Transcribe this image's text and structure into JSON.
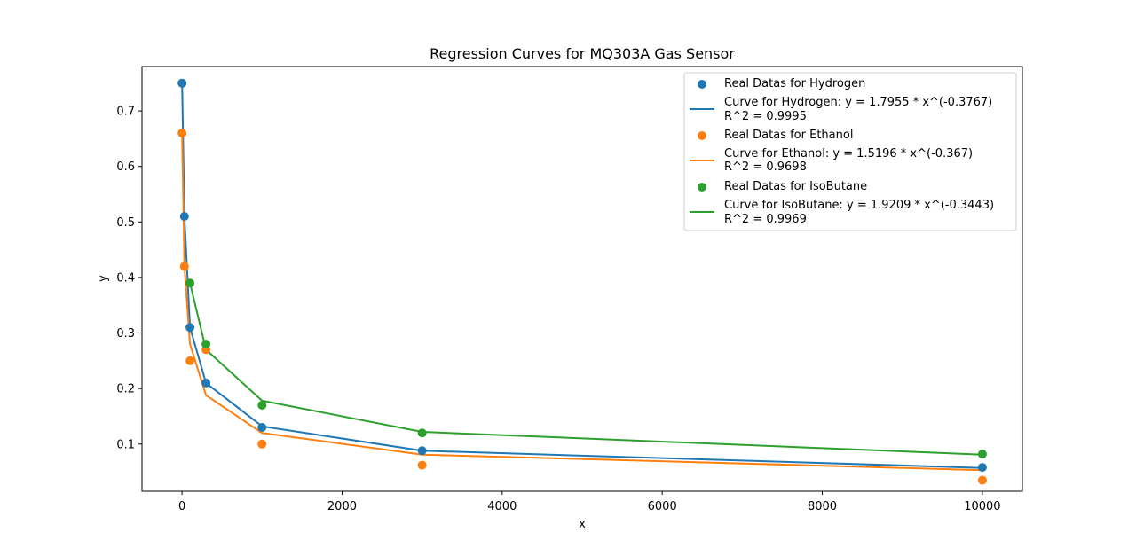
{
  "chart_data": {
    "type": "scatter",
    "title": "Regression Curves for MQ303A Gas Sensor",
    "xlabel": "x",
    "ylabel": "y",
    "xlim": [
      -500,
      10500
    ],
    "ylim": [
      0.015,
      0.78
    ],
    "x_ticks": [
      0,
      2000,
      4000,
      6000,
      8000,
      10000
    ],
    "y_ticks": [
      0.1,
      0.2,
      0.3,
      0.4,
      0.5,
      0.6,
      0.7
    ],
    "grid": false,
    "legend_position": "top-right",
    "x": [
      1,
      30,
      100,
      300,
      1000,
      3000,
      10000
    ],
    "series": [
      {
        "color": "#1f77b4",
        "points_label": "Real Datas for Hydrogen",
        "curve_label": "Curve for Hydrogen: y = 1.7955 * x^(-0.3767)",
        "r2_label": "R^2 = 0.9995",
        "points": [
          0.75,
          0.51,
          0.31,
          0.21,
          0.13,
          0.088,
          0.058
        ],
        "curve": [
          0.75,
          0.51,
          0.31,
          0.21,
          0.132,
          0.088,
          0.057
        ]
      },
      {
        "color": "#ff7f0e",
        "points_label": "Real Datas for Ethanol",
        "curve_label": "Curve for Ethanol: y = 1.5196 * x^(-0.367)",
        "r2_label": "R^2 = 0.9698",
        "points": [
          0.66,
          0.42,
          0.25,
          0.27,
          0.1,
          0.062,
          0.035
        ],
        "curve": [
          0.66,
          0.42,
          0.28,
          0.188,
          0.12,
          0.081,
          0.053
        ]
      },
      {
        "color": "#2ca02c",
        "points_label": "Real Datas for IsoButane",
        "curve_label": "Curve for IsoButane: y = 1.9209 * x^(-0.3443)",
        "r2_label": "R^2 = 0.9969",
        "points": [
          null,
          null,
          0.39,
          0.28,
          0.17,
          0.12,
          0.082
        ],
        "curve": [
          null,
          null,
          0.39,
          0.27,
          0.178,
          0.122,
          0.081
        ]
      }
    ]
  }
}
